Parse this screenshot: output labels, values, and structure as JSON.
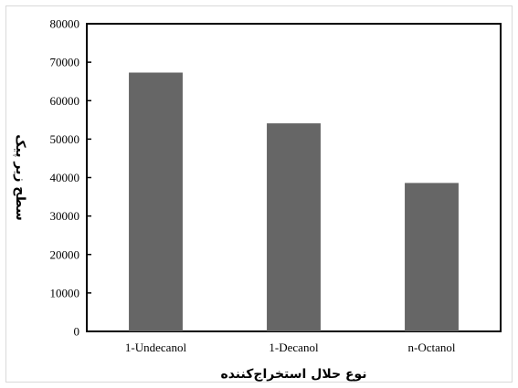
{
  "chart_data": {
    "type": "bar",
    "categories": [
      "1-Undecanol",
      "1-Decanol",
      "n-Octanol"
    ],
    "values": [
      67300,
      54100,
      38600
    ],
    "title": "",
    "xlabel": "نوع حلال استخراج‌کننده",
    "ylabel": "سطح زیر پیک",
    "ylim": [
      0,
      80000
    ],
    "yticks": [
      "0",
      "10000",
      "20000",
      "30000",
      "40000",
      "50000",
      "60000",
      "70000",
      "80000"
    ],
    "grid": false,
    "legend": "none",
    "bar_color": "#666666",
    "frame_color": "#000000"
  }
}
